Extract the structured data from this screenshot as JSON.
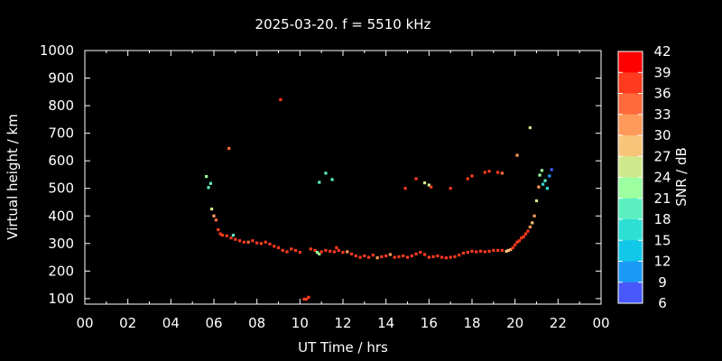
{
  "chart_data": {
    "type": "scatter",
    "title": "2025-03-20. f = 5510 kHz",
    "xlabel": "UT Time / hrs",
    "ylabel": "Virtual height / km",
    "colorbar_label": "SNR / dB",
    "xlim": [
      0,
      24
    ],
    "ylim": [
      80,
      1000
    ],
    "xticks": [
      "00",
      "02",
      "04",
      "06",
      "08",
      "10",
      "12",
      "14",
      "16",
      "18",
      "20",
      "22",
      "00"
    ],
    "yticks": [
      100,
      200,
      300,
      400,
      500,
      600,
      700,
      800,
      900,
      1000
    ],
    "colorbar_ticks": [
      42,
      39,
      36,
      33,
      30,
      27,
      24,
      21,
      18,
      15,
      12,
      9,
      6
    ],
    "colorbar_colors": [
      "#ff0000",
      "#ff3a1e",
      "#ff6a3a",
      "#ff9a5a",
      "#f8c47a",
      "#cfe88c",
      "#9cffa0",
      "#5cf0c0",
      "#2ee0d4",
      "#12c8e8",
      "#1a9af6",
      "#4858fa",
      "#8a18f8"
    ],
    "grid": false,
    "legend": "none",
    "series": [
      {
        "points": [
          [
            5.65,
            543,
            24
          ],
          [
            5.75,
            503,
            21
          ],
          [
            5.85,
            518,
            21
          ],
          [
            5.9,
            425,
            27
          ],
          [
            6.0,
            400,
            33
          ],
          [
            6.1,
            385,
            36
          ],
          [
            6.2,
            350,
            39
          ],
          [
            6.3,
            335,
            39
          ],
          [
            6.4,
            330,
            39
          ],
          [
            6.6,
            328,
            39
          ],
          [
            6.8,
            320,
            39
          ],
          [
            6.9,
            330,
            21
          ],
          [
            7.0,
            315,
            39
          ],
          [
            7.2,
            310,
            39
          ],
          [
            7.4,
            305,
            39
          ],
          [
            7.6,
            305,
            36
          ],
          [
            7.8,
            310,
            39
          ],
          [
            8.0,
            302,
            39
          ],
          [
            8.2,
            300,
            39
          ],
          [
            8.4,
            305,
            39
          ],
          [
            8.6,
            298,
            39
          ],
          [
            8.8,
            290,
            39
          ],
          [
            9.0,
            285,
            39
          ],
          [
            9.2,
            275,
            39
          ],
          [
            9.4,
            270,
            39
          ],
          [
            9.6,
            280,
            39
          ],
          [
            9.8,
            275,
            39
          ],
          [
            10.0,
            268,
            39
          ],
          [
            10.2,
            98,
            39
          ],
          [
            10.3,
            98,
            39
          ],
          [
            10.4,
            105,
            39
          ],
          [
            10.5,
            280,
            39
          ],
          [
            10.7,
            275,
            39
          ],
          [
            10.8,
            268,
            24
          ],
          [
            10.9,
            262,
            24
          ],
          [
            11.0,
            270,
            39
          ],
          [
            11.2,
            275,
            39
          ],
          [
            11.4,
            272,
            39
          ],
          [
            11.6,
            270,
            39
          ],
          [
            11.7,
            285,
            39
          ],
          [
            11.8,
            275,
            39
          ],
          [
            12.0,
            268,
            39
          ],
          [
            12.2,
            270,
            33
          ],
          [
            12.4,
            262,
            39
          ],
          [
            12.6,
            255,
            39
          ],
          [
            12.8,
            250,
            39
          ],
          [
            13.0,
            255,
            39
          ],
          [
            13.2,
            250,
            39
          ],
          [
            13.4,
            258,
            39
          ],
          [
            13.6,
            248,
            33
          ],
          [
            13.8,
            252,
            39
          ],
          [
            14.0,
            255,
            39
          ],
          [
            14.2,
            260,
            33
          ],
          [
            14.4,
            250,
            39
          ],
          [
            14.6,
            252,
            39
          ],
          [
            14.8,
            255,
            39
          ],
          [
            15.0,
            250,
            39
          ],
          [
            15.2,
            255,
            39
          ],
          [
            15.4,
            262,
            39
          ],
          [
            15.6,
            268,
            39
          ],
          [
            15.8,
            260,
            39
          ],
          [
            16.0,
            250,
            39
          ],
          [
            16.2,
            252,
            39
          ],
          [
            16.4,
            255,
            39
          ],
          [
            16.6,
            250,
            39
          ],
          [
            16.8,
            248,
            39
          ],
          [
            17.0,
            250,
            39
          ],
          [
            17.2,
            252,
            39
          ],
          [
            17.4,
            258,
            39
          ],
          [
            17.6,
            265,
            39
          ],
          [
            17.8,
            268,
            39
          ],
          [
            18.0,
            272,
            39
          ],
          [
            18.2,
            270,
            39
          ],
          [
            18.4,
            272,
            39
          ],
          [
            18.6,
            270,
            39
          ],
          [
            18.8,
            272,
            39
          ],
          [
            19.0,
            275,
            39
          ],
          [
            19.2,
            275,
            39
          ],
          [
            19.4,
            275,
            39
          ],
          [
            19.6,
            272,
            30
          ],
          [
            19.7,
            275,
            30
          ],
          [
            19.8,
            278,
            33
          ],
          [
            19.9,
            285,
            39
          ],
          [
            20.0,
            295,
            39
          ],
          [
            20.1,
            305,
            39
          ],
          [
            20.2,
            310,
            39
          ],
          [
            20.3,
            320,
            39
          ],
          [
            20.4,
            325,
            39
          ],
          [
            20.5,
            335,
            39
          ],
          [
            20.6,
            345,
            39
          ],
          [
            20.7,
            360,
            33
          ],
          [
            20.8,
            375,
            30
          ],
          [
            20.9,
            400,
            33
          ],
          [
            21.0,
            455,
            27
          ],
          [
            21.1,
            505,
            33
          ],
          [
            21.15,
            548,
            24
          ],
          [
            21.25,
            565,
            24
          ],
          [
            21.3,
            515,
            18
          ],
          [
            21.4,
            528,
            21
          ],
          [
            21.5,
            500,
            18
          ],
          [
            21.6,
            545,
            12
          ],
          [
            21.7,
            568,
            9
          ],
          [
            6.7,
            645,
            36
          ],
          [
            9.1,
            822,
            39
          ],
          [
            10.9,
            522,
            21
          ],
          [
            11.2,
            555,
            21
          ],
          [
            11.5,
            532,
            21
          ],
          [
            14.9,
            500,
            39
          ],
          [
            15.4,
            535,
            39
          ],
          [
            15.8,
            520,
            27
          ],
          [
            16.0,
            512,
            27
          ],
          [
            16.1,
            505,
            39
          ],
          [
            17.0,
            500,
            39
          ],
          [
            17.8,
            535,
            39
          ],
          [
            18.0,
            545,
            39
          ],
          [
            18.6,
            558,
            39
          ],
          [
            18.8,
            562,
            39
          ],
          [
            19.2,
            558,
            39
          ],
          [
            19.4,
            555,
            36
          ],
          [
            20.1,
            620,
            33
          ],
          [
            20.7,
            720,
            27
          ]
        ]
      }
    ]
  }
}
